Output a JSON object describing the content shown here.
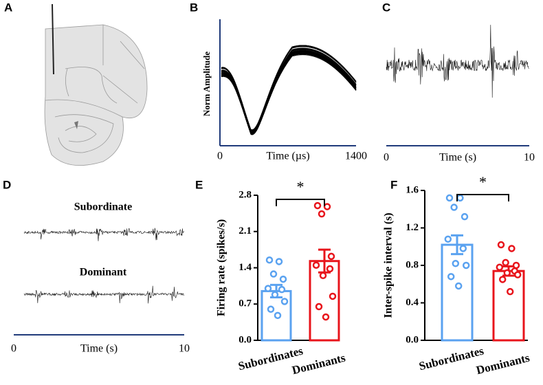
{
  "panel_a": {
    "label": "A"
  },
  "chart_data": [
    {
      "type": "waveform",
      "label": "B",
      "ylabel": "Norm Amplitude",
      "xlabel": "Time (µs)",
      "xlim": [
        0,
        1400
      ],
      "xticks": [
        0,
        1400
      ]
    },
    {
      "type": "trace",
      "label": "C",
      "xlabel": "Time (s)",
      "xlim": [
        0,
        10
      ],
      "xticks": [
        0,
        10
      ]
    },
    {
      "type": "traces",
      "label": "D",
      "traces": [
        "Subordinate",
        "Dominant"
      ],
      "xlabel": "Time (s)",
      "xlim": [
        0,
        10
      ],
      "xticks": [
        0,
        10
      ]
    },
    {
      "type": "bar",
      "label": "E",
      "ylabel": "Firing rate (spikes/s)",
      "annotation": "*",
      "categories": [
        "Subordinates",
        "Dominants"
      ],
      "colors": [
        "#5aa2f0",
        "#e8141b"
      ],
      "values": [
        0.95,
        1.53
      ],
      "errors": [
        0.12,
        0.22
      ],
      "points": [
        [
          1.55,
          1.52,
          1.28,
          1.18,
          1.0,
          0.98,
          0.88,
          0.75,
          0.6,
          0.48
        ],
        [
          2.6,
          2.58,
          2.44,
          1.62,
          1.45,
          1.38,
          1.25,
          0.85,
          0.65,
          0.45
        ]
      ],
      "ylim": [
        0,
        2.8
      ],
      "yticks": [
        {
          "value": 0,
          "label": "0.0"
        },
        0.7,
        1.4,
        2.1,
        2.8
      ]
    },
    {
      "type": "bar",
      "label": "F",
      "ylabel": "Inter-spike interval (s)",
      "annotation": "*",
      "categories": [
        "Subordinates",
        "Dominants"
      ],
      "colors": [
        "#5aa2f0",
        "#e8141b"
      ],
      "values": [
        1.02,
        0.74
      ],
      "errors": [
        0.1,
        0.05
      ],
      "points": [
        [
          1.52,
          1.52,
          1.42,
          1.32,
          1.08,
          0.98,
          0.82,
          0.8,
          0.68,
          0.58
        ],
        [
          1.02,
          0.98,
          0.83,
          0.8,
          0.78,
          0.74,
          0.72,
          0.7,
          0.65,
          0.52
        ]
      ],
      "ylim": [
        0,
        1.6
      ],
      "yticks": [
        {
          "value": 0,
          "label": "0.0"
        },
        0.4,
        0.8,
        1.2,
        1.6
      ]
    }
  ]
}
